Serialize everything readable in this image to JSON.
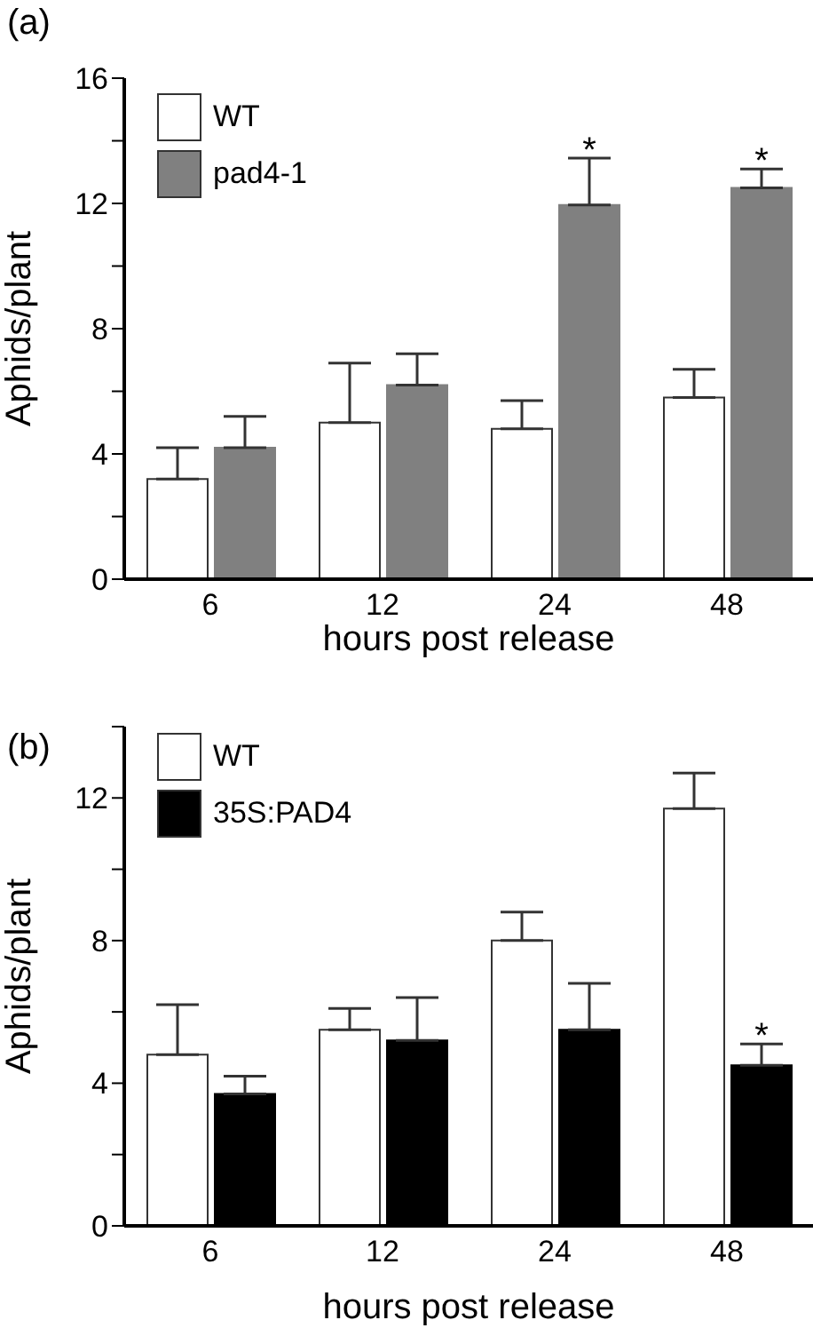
{
  "chart_data": [
    {
      "type": "bar",
      "title": "(a)",
      "xlabel": "hours post release",
      "ylabel": "Aphids/plant",
      "categories": [
        "6",
        "12",
        "24",
        "48"
      ],
      "series": [
        {
          "name": "WT",
          "color": "#ffffff",
          "values": [
            3.2,
            5.0,
            4.8,
            5.8
          ],
          "errors": [
            1.0,
            1.9,
            0.9,
            0.9
          ]
        },
        {
          "name": "pad4-1",
          "color": "#808080",
          "values": [
            4.2,
            6.2,
            11.95,
            12.5
          ],
          "errors": [
            1.0,
            1.0,
            1.5,
            0.6
          ]
        }
      ],
      "ylim": [
        0,
        16
      ],
      "yticks": [
        0,
        {
          "value": 2,
          "label": null
        },
        4,
        {
          "value": 6,
          "label": null
        },
        8,
        {
          "value": 10,
          "label": null
        },
        12,
        {
          "value": 14,
          "label": null
        },
        16
      ],
      "legend": "top left",
      "annotations": [
        {
          "text": "*",
          "x": "24",
          "y": 11.95
        },
        {
          "text": "*",
          "x": "48",
          "y": 12.5
        }
      ]
    },
    {
      "type": "bar",
      "title": "(b)",
      "xlabel": "hours post release",
      "ylabel": "Aphids/plant",
      "categories": [
        "6",
        "12",
        "24",
        "48"
      ],
      "series": [
        {
          "name": "WT",
          "color": "#ffffff",
          "values": [
            4.8,
            5.5,
            8.0,
            11.7
          ],
          "errors": [
            1.4,
            0.6,
            0.8,
            1.0
          ]
        },
        {
          "name": "35S:PAD4",
          "color": "#000000",
          "values": [
            3.7,
            5.2,
            5.5,
            4.5
          ],
          "errors": [
            0.5,
            1.2,
            1.3,
            0.6
          ]
        }
      ],
      "ylim": [
        0,
        14
      ],
      "yticks": [
        0,
        {
          "value": 2,
          "label": null
        },
        4,
        {
          "value": 6,
          "label": null
        },
        8,
        {
          "value": 10,
          "label": null
        },
        12,
        {
          "value": 14,
          "label": null
        }
      ],
      "legend": "top left",
      "annotations": [
        {
          "text": "*",
          "x": "48",
          "y": 4.5
        }
      ]
    }
  ]
}
